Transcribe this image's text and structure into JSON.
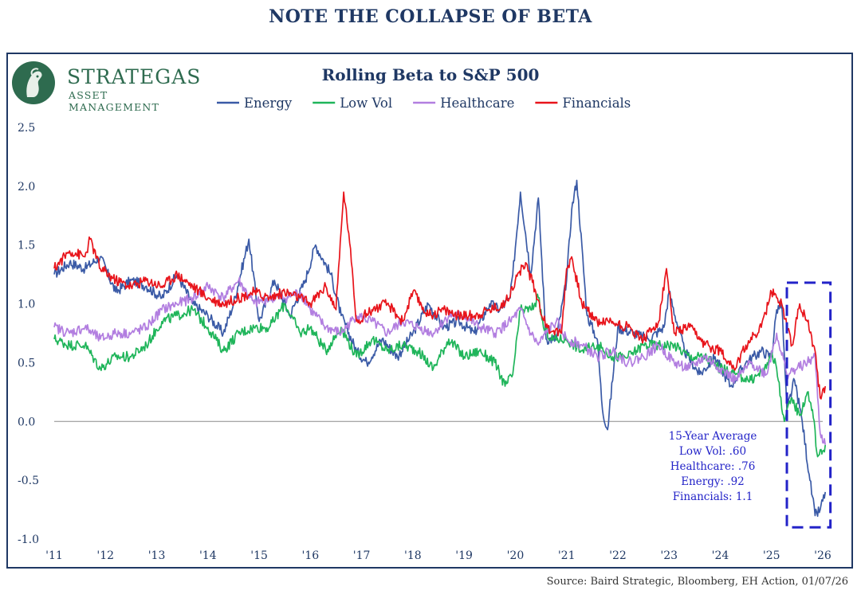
{
  "page": {
    "heading": "NOTE THE COLLAPSE OF BETA",
    "source": "Source: Baird Strategic, Bloomberg, EH Action, 01/07/26"
  },
  "brand": {
    "name": "STRATEGAS",
    "subtitle": "ASSET MANAGEMENT",
    "logo_icon": "strategas-logo-icon"
  },
  "colors": {
    "heading": "#1f3864",
    "brand": "#2e6b4f",
    "energy": "#3a5aa6",
    "low_vol": "#1fb55a",
    "healthcare": "#b27ee0",
    "financials": "#e8141b",
    "callout": "#2323c8"
  },
  "chart_data": {
    "type": "line",
    "title": "Rolling Beta to S&P 500",
    "xlabel": "",
    "ylabel": "",
    "xlim": [
      2011,
      2026.3
    ],
    "ylim": [
      -1.0,
      2.5
    ],
    "yticks": [
      "2.5",
      "2.0",
      "1.5",
      "1.0",
      "0.5",
      "0.0",
      "-0.5",
      "-1.0"
    ],
    "xticks": [
      "'11",
      "'12",
      "'13",
      "'14",
      "'15",
      "'16",
      "'17",
      "'18",
      "'19",
      "'20",
      "'21",
      "'22",
      "'23",
      "'24",
      "'25",
      "'26"
    ],
    "legend_position": "top",
    "grid": false,
    "reference_line": 0.0,
    "series": [
      {
        "name": "Energy",
        "color": "#3a5aa6",
        "x": [
          2011.0,
          2011.3,
          2011.6,
          2011.9,
          2012.2,
          2012.5,
          2012.8,
          2013.1,
          2013.4,
          2013.7,
          2014.0,
          2014.3,
          2014.5,
          2014.8,
          2015.0,
          2015.3,
          2015.6,
          2015.9,
          2016.1,
          2016.4,
          2016.6,
          2016.9,
          2017.1,
          2017.4,
          2017.7,
          2018.0,
          2018.3,
          2018.6,
          2018.9,
          2019.2,
          2019.5,
          2019.7,
          2019.9,
          2019.95,
          2020.1,
          2020.3,
          2020.45,
          2020.6,
          2020.8,
          2021.0,
          2021.1,
          2021.2,
          2021.4,
          2021.6,
          2021.7,
          2021.8,
          2022.0,
          2022.3,
          2022.6,
          2022.9,
          2023.0,
          2023.3,
          2023.6,
          2023.9,
          2024.2,
          2024.5,
          2024.8,
          2025.0,
          2025.1,
          2025.2,
          2025.3,
          2025.45,
          2025.6,
          2025.75,
          2025.85,
          2025.95,
          2026.05
        ],
        "y": [
          1.25,
          1.35,
          1.3,
          1.4,
          1.1,
          1.2,
          1.15,
          1.05,
          1.25,
          1.0,
          0.9,
          0.75,
          1.0,
          1.55,
          0.85,
          1.2,
          0.9,
          1.2,
          1.5,
          1.25,
          0.9,
          0.6,
          0.5,
          0.7,
          0.55,
          0.75,
          1.0,
          0.8,
          0.85,
          0.75,
          1.0,
          0.95,
          1.05,
          1.25,
          1.95,
          1.25,
          1.9,
          0.7,
          0.7,
          1.2,
          1.8,
          2.05,
          0.9,
          0.7,
          0.1,
          -0.07,
          0.8,
          0.75,
          0.7,
          0.8,
          1.1,
          0.6,
          0.4,
          0.55,
          0.3,
          0.5,
          0.6,
          0.55,
          0.95,
          1.0,
          0.1,
          0.35,
          0.0,
          -0.5,
          -0.8,
          -0.75,
          -0.6
        ]
      },
      {
        "name": "Low Vol",
        "color": "#1fb55a",
        "x": [
          2011.0,
          2011.3,
          2011.6,
          2011.9,
          2012.2,
          2012.5,
          2012.8,
          2013.1,
          2013.4,
          2013.7,
          2014.0,
          2014.3,
          2014.6,
          2014.9,
          2015.2,
          2015.5,
          2015.8,
          2016.0,
          2016.3,
          2016.6,
          2016.9,
          2017.2,
          2017.5,
          2017.8,
          2018.1,
          2018.4,
          2018.7,
          2019.0,
          2019.3,
          2019.6,
          2019.8,
          2019.95,
          2020.1,
          2020.3,
          2020.45,
          2020.55,
          2020.7,
          2021.0,
          2021.3,
          2021.6,
          2021.9,
          2022.2,
          2022.5,
          2022.8,
          2023.1,
          2023.4,
          2023.7,
          2024.0,
          2024.3,
          2024.6,
          2024.9,
          2025.0,
          2025.1,
          2025.25,
          2025.4,
          2025.55,
          2025.7,
          2025.8,
          2025.9,
          2026.0,
          2026.05
        ],
        "y": [
          0.7,
          0.65,
          0.65,
          0.45,
          0.55,
          0.55,
          0.65,
          0.85,
          0.9,
          0.95,
          0.8,
          0.6,
          0.75,
          0.8,
          0.8,
          1.0,
          0.75,
          0.8,
          0.6,
          0.8,
          0.55,
          0.7,
          0.6,
          0.65,
          0.6,
          0.45,
          0.7,
          0.55,
          0.6,
          0.5,
          0.3,
          0.4,
          0.95,
          0.95,
          1.05,
          0.8,
          0.7,
          0.7,
          0.6,
          0.65,
          0.55,
          0.55,
          0.65,
          0.65,
          0.65,
          0.55,
          0.55,
          0.45,
          0.4,
          0.35,
          0.45,
          0.6,
          0.45,
          0.0,
          0.2,
          0.05,
          0.25,
          0.1,
          -0.3,
          -0.25,
          -0.2
        ]
      },
      {
        "name": "Healthcare",
        "color": "#b27ee0",
        "x": [
          2011.0,
          2011.3,
          2011.6,
          2011.9,
          2012.2,
          2012.5,
          2012.8,
          2013.1,
          2013.4,
          2013.7,
          2014.0,
          2014.3,
          2014.6,
          2014.9,
          2015.2,
          2015.5,
          2015.8,
          2016.0,
          2016.3,
          2016.6,
          2016.9,
          2017.2,
          2017.5,
          2017.8,
          2018.1,
          2018.4,
          2018.7,
          2019.0,
          2019.3,
          2019.6,
          2019.9,
          2020.1,
          2020.3,
          2020.45,
          2020.6,
          2020.8,
          2021.0,
          2021.3,
          2021.6,
          2021.9,
          2022.2,
          2022.5,
          2022.8,
          2023.1,
          2023.4,
          2023.7,
          2024.0,
          2024.3,
          2024.6,
          2024.9,
          2025.1,
          2025.3,
          2025.5,
          2025.7,
          2025.85,
          2025.95,
          2026.05
        ],
        "y": [
          0.8,
          0.75,
          0.8,
          0.7,
          0.75,
          0.75,
          0.8,
          0.95,
          1.0,
          1.05,
          1.15,
          1.05,
          1.2,
          1.0,
          1.05,
          1.05,
          1.1,
          0.95,
          0.8,
          0.75,
          0.9,
          0.85,
          0.75,
          0.85,
          0.8,
          0.75,
          0.9,
          0.9,
          0.8,
          0.75,
          0.85,
          0.95,
          0.75,
          0.65,
          0.75,
          0.85,
          0.7,
          0.65,
          0.55,
          0.6,
          0.5,
          0.55,
          0.65,
          0.5,
          0.45,
          0.55,
          0.45,
          0.35,
          0.5,
          0.4,
          0.75,
          0.4,
          0.45,
          0.5,
          0.55,
          -0.1,
          -0.2
        ]
      },
      {
        "name": "Financials",
        "color": "#e8141b",
        "x": [
          2011.0,
          2011.3,
          2011.6,
          2011.7,
          2011.9,
          2012.2,
          2012.5,
          2012.8,
          2013.1,
          2013.4,
          2013.7,
          2014.0,
          2014.3,
          2014.6,
          2014.9,
          2015.2,
          2015.5,
          2015.8,
          2016.0,
          2016.3,
          2016.5,
          2016.65,
          2016.75,
          2016.9,
          2017.2,
          2017.5,
          2017.8,
          2018.0,
          2018.3,
          2018.6,
          2018.9,
          2019.2,
          2019.5,
          2019.8,
          2020.0,
          2020.2,
          2020.4,
          2020.6,
          2020.9,
          2021.0,
          2021.1,
          2021.3,
          2021.6,
          2021.9,
          2022.2,
          2022.5,
          2022.8,
          2022.95,
          2023.1,
          2023.4,
          2023.7,
          2024.0,
          2024.3,
          2024.5,
          2024.8,
          2025.0,
          2025.2,
          2025.4,
          2025.55,
          2025.7,
          2025.85,
          2025.95,
          2026.05
        ],
        "y": [
          1.3,
          1.45,
          1.4,
          1.55,
          1.3,
          1.2,
          1.15,
          1.2,
          1.15,
          1.25,
          1.15,
          1.05,
          1.0,
          1.05,
          1.1,
          1.05,
          1.1,
          1.05,
          1.0,
          1.15,
          0.95,
          1.95,
          1.6,
          0.85,
          0.95,
          1.0,
          0.85,
          1.1,
          0.9,
          0.95,
          0.9,
          0.9,
          0.95,
          1.0,
          1.2,
          1.35,
          1.1,
          0.8,
          0.75,
          1.3,
          1.4,
          1.0,
          0.85,
          0.85,
          0.8,
          0.7,
          0.85,
          1.3,
          0.75,
          0.8,
          0.65,
          0.6,
          0.45,
          0.65,
          0.8,
          1.1,
          1.0,
          0.65,
          1.0,
          0.85,
          0.6,
          0.2,
          0.3
        ]
      }
    ],
    "annotation": {
      "lines": [
        "15-Year Average",
        "Low Vol: .60",
        "Healthcare: .76",
        "Energy: .92",
        "Financials: 1.1"
      ]
    },
    "highlight_box": {
      "x_start": 2025.3,
      "x_end": 2026.15,
      "y_start": -0.9,
      "y_end": 1.18
    }
  }
}
